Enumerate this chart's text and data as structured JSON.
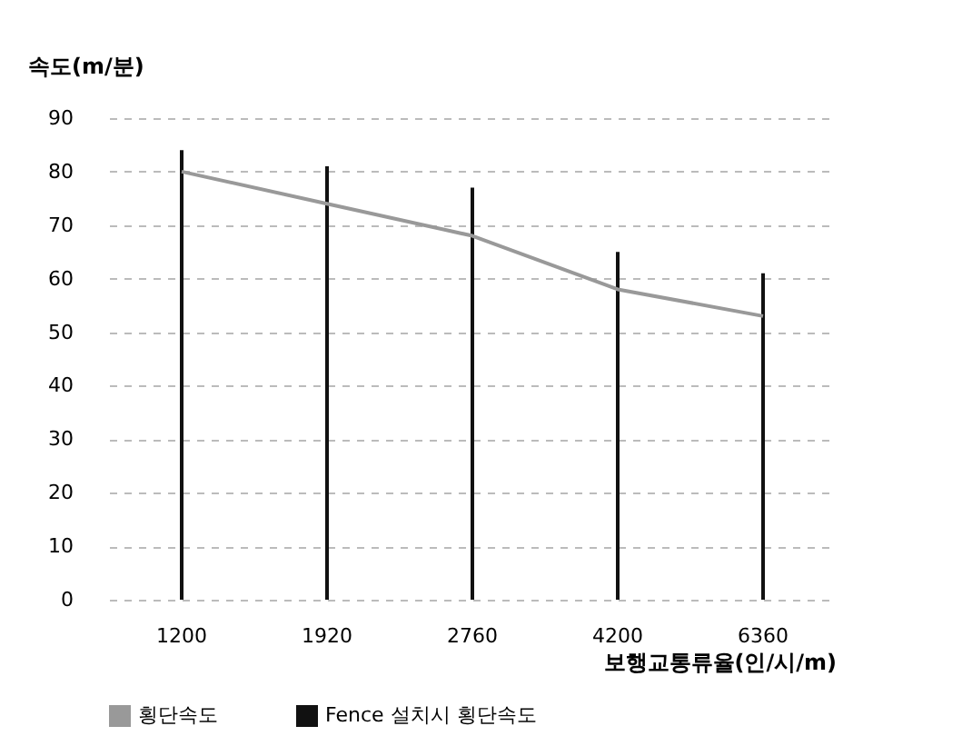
{
  "chart_data": {
    "type": "bar",
    "xlabel": "보행교통류율(인/시/m)",
    "ylabel": "속도(m/분)",
    "categories": [
      "1200",
      "1920",
      "2760",
      "4200",
      "6360"
    ],
    "series": [
      {
        "name": "횡단속도",
        "type": "line",
        "color": "#999999",
        "values": [
          80,
          74,
          68,
          58,
          53
        ]
      },
      {
        "name": "Fence 설치시 횡단속도",
        "color": "#111111",
        "values": [
          84,
          81,
          77,
          65,
          61
        ]
      }
    ],
    "ylim": [
      0,
      90
    ],
    "yticks": [
      0,
      10,
      20,
      30,
      40,
      50,
      60,
      70,
      80,
      90
    ],
    "grid": "y",
    "legend": "bottom",
    "marker": "none"
  }
}
